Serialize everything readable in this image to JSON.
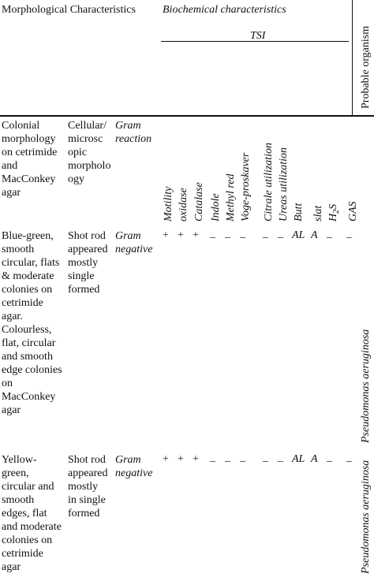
{
  "header": {
    "morphological": "Morphological Characteristics",
    "biochemical": "Biochemical characteristics",
    "tsi": "TSI",
    "probable_organism": "Probable organism"
  },
  "subheader": {
    "colonial": "Colonial morphology on cetrimide and MacConkey agar",
    "cellular": "Cellular/ microsc opic morpholo ogy",
    "gram": "Gram reaction",
    "tests": {
      "motility": "Motility",
      "oxidase": "oxidase",
      "catalase": "Catalase",
      "indole": "Indole",
      "methyl_red": "Methyl red",
      "voges": "Voge-proskaver",
      "citrate": "Citrale utilization",
      "urease": "Ureas utilization",
      "butt": "Butt",
      "slat": "slat",
      "h2s_base": "H",
      "h2s_sub": "2",
      "h2s_tail": "S",
      "gas": "GAS"
    }
  },
  "rows": [
    {
      "colonial": [
        "Blue-green,",
        "smooth",
        "circular, flats",
        "& moderate",
        "colonies on",
        "cetrimide",
        "agar.",
        "Colourless,",
        "flat, circular",
        "and smooth",
        "edge colonies",
        "on",
        "MacConkey",
        "agar"
      ],
      "cellular": [
        "Shot rod",
        "appeared",
        "mostly",
        "single",
        "formed"
      ],
      "gram": [
        "Gram",
        "negative"
      ],
      "results": {
        "motility": "+",
        "oxidase": "+",
        "catalase": "+",
        "indole": "_",
        "methyl_red": "_",
        "voges": "_",
        "citrate": "_",
        "urease": "_",
        "butt": "AL",
        "slat": "A",
        "h2s": "_",
        "gas": "_"
      },
      "organism": "Pseudomonas aeruginosa"
    },
    {
      "colonial": [
        "Yellow-",
        "green,",
        "circular and",
        "smooth",
        "edges, flat",
        "and moderate",
        "colonies on",
        "cetrimide",
        "agar"
      ],
      "cellular": [
        "Shot rod",
        "appeared",
        "mostly",
        "in single",
        "formed"
      ],
      "gram": [
        "Gram",
        "negative"
      ],
      "results": {
        "motility": "+",
        "oxidase": "+",
        "catalase": "+",
        "indole": "_",
        "methyl_red": "_",
        "voges": "_",
        "citrate": "_",
        "urease": "_",
        "butt": "AL",
        "slat": "A",
        "h2s": "_",
        "gas": "_"
      },
      "organism": "Pseudomonas aeruginosa"
    }
  ]
}
